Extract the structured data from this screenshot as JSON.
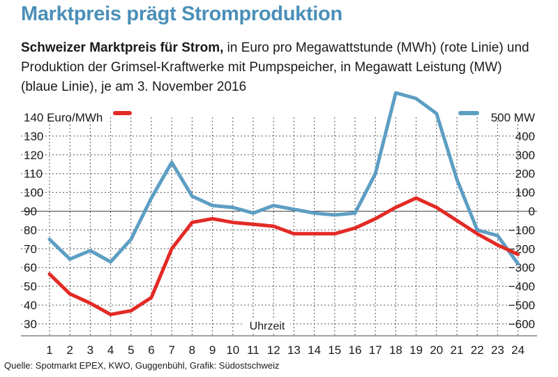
{
  "header": {
    "title": "Marktpreis prägt Stromproduktion",
    "subtitle_bold": "Schweizer Marktpreis für Strom,",
    "subtitle_rest": " in Euro pro Megawattstunde (MWh) (rote Linie) und Produktion der Grimsel-Kraftwerke mit Pumpspeicher, in Megawatt Leistung (MW) (blaue Linie),  je am 3. November 2016"
  },
  "source": "Quelle: Spotmarkt EPEX, KWO, Guggenbühl, Grafik: Südostschweiz",
  "chart_data": {
    "type": "line",
    "x": [
      1,
      2,
      3,
      4,
      5,
      6,
      7,
      8,
      9,
      10,
      11,
      12,
      13,
      14,
      15,
      16,
      17,
      18,
      19,
      20,
      21,
      22,
      23,
      24
    ],
    "xlabel": "Uhrzeit",
    "left_axis": {
      "unit_label": "Euro/MWh",
      "ticks": [
        30,
        40,
        50,
        60,
        70,
        80,
        90,
        100,
        110,
        120,
        130,
        140
      ],
      "ylim": [
        30,
        140
      ]
    },
    "right_axis": {
      "unit_label": "MW",
      "ticks": [
        -600,
        -500,
        -400,
        -300,
        -200,
        -100,
        0,
        100,
        200,
        300,
        400,
        500
      ],
      "ylim": [
        -600,
        500
      ]
    },
    "grid": true,
    "series": [
      {
        "axis": "left",
        "color": "#e32a25",
        "values": [
          56.5,
          46,
          41,
          35,
          37,
          44,
          70,
          84,
          86,
          84,
          83,
          82,
          78,
          78,
          78,
          81,
          86,
          92,
          97,
          92,
          85,
          78,
          72,
          67
        ]
      },
      {
        "axis": "right",
        "color": "#5d9ec3",
        "values": [
          -150,
          -255,
          -210,
          -270,
          -150,
          70,
          260,
          80,
          30,
          20,
          -10,
          30,
          10,
          -10,
          -20,
          -10,
          200,
          630,
          600,
          520,
          170,
          -100,
          -130,
          -280
        ]
      }
    ]
  }
}
